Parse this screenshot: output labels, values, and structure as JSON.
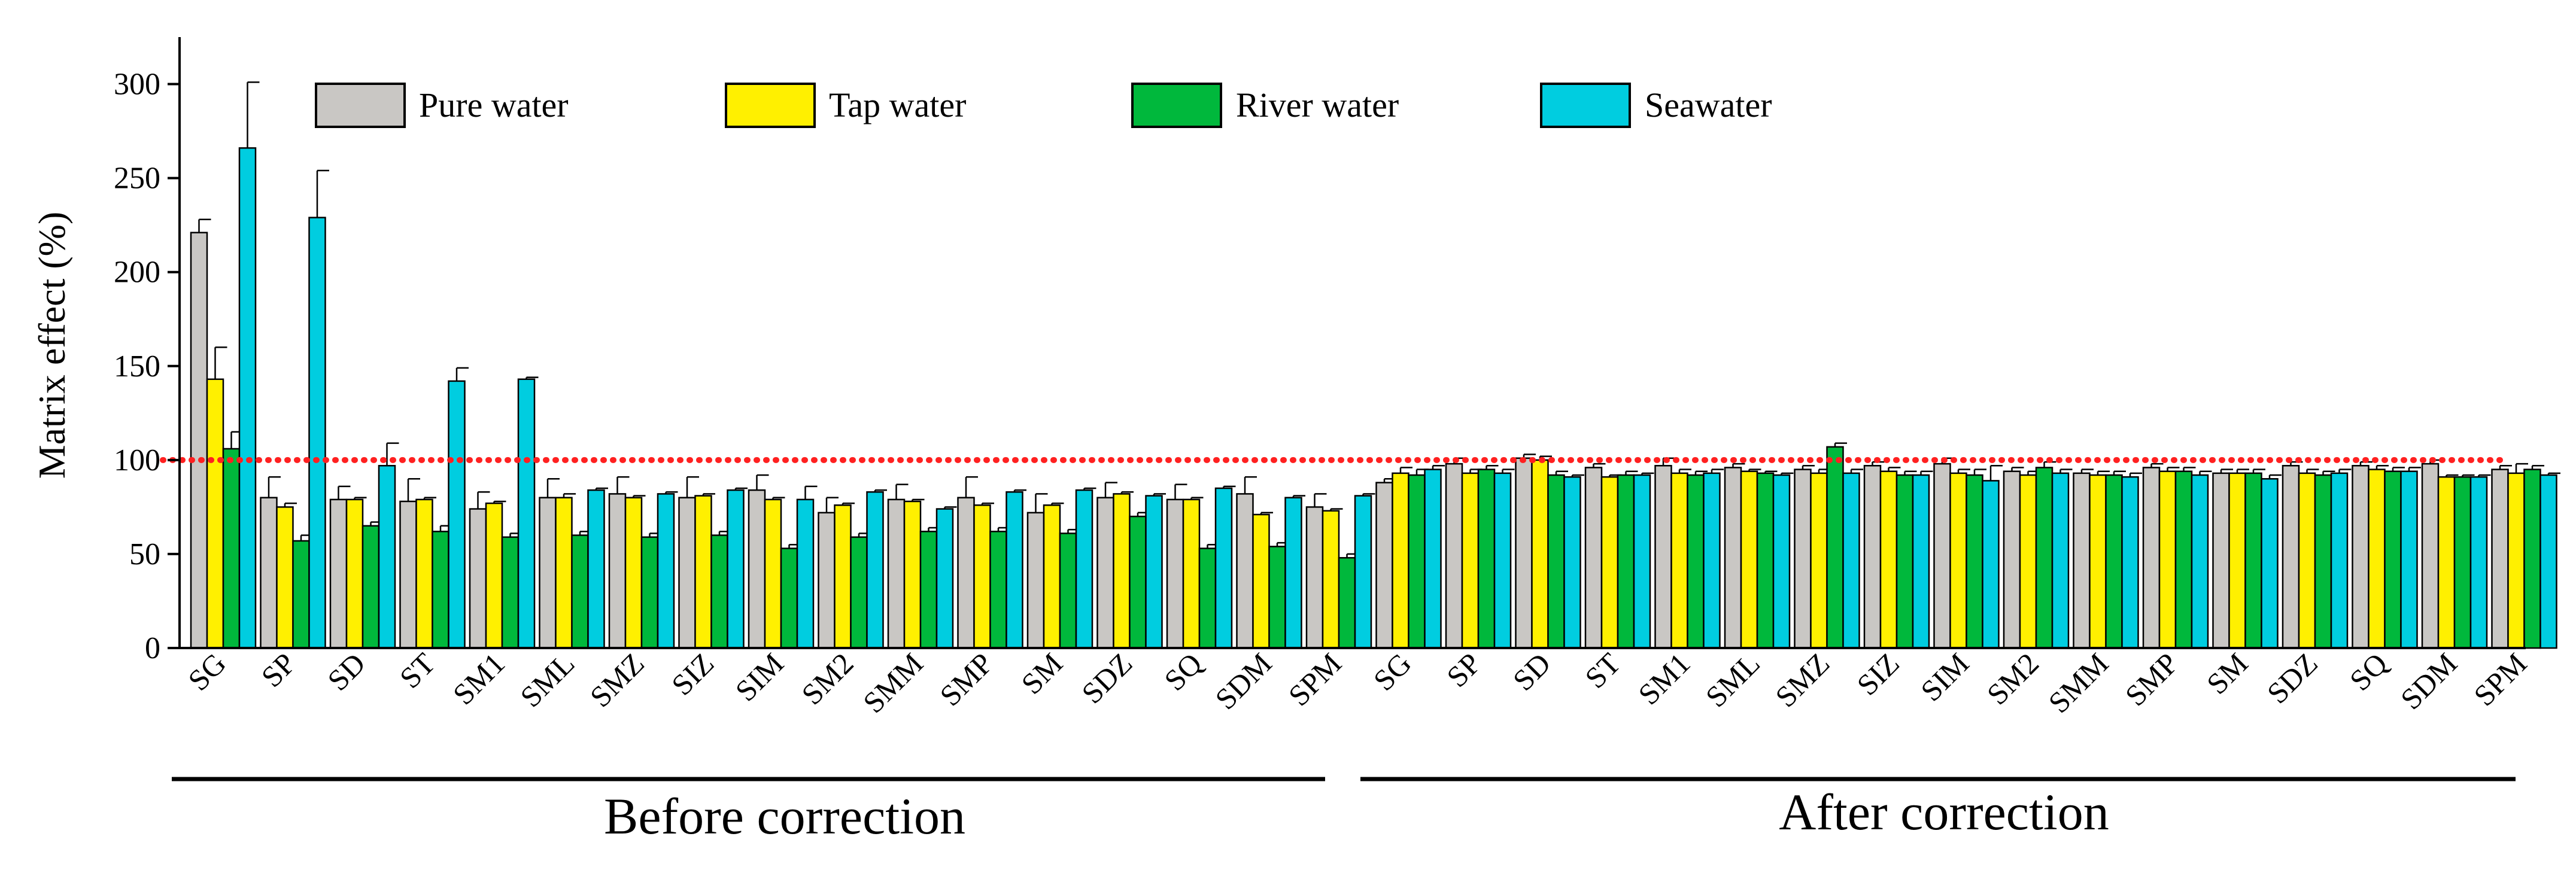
{
  "chart_data": {
    "type": "bar",
    "ylabel": "Matrix effect (%)",
    "xlabel": "",
    "ylim": [
      0,
      325
    ],
    "yticks": [
      0,
      50,
      100,
      150,
      200,
      250,
      300
    ],
    "reference_line": {
      "y": 100,
      "style": "dotted",
      "color": "#ff2020"
    },
    "legend_placement": "top-left",
    "series": [
      {
        "name": "Pure water",
        "color": "#c9c7c4"
      },
      {
        "name": "Tap water",
        "color": "#fff000"
      },
      {
        "name": "River water",
        "color": "#00b83c"
      },
      {
        "name": "Seawater",
        "color": "#00cde0"
      }
    ],
    "groups": [
      {
        "label": "Before correction",
        "categories": [
          "SG",
          "SP",
          "SD",
          "ST",
          "SM1",
          "SML",
          "SMZ",
          "SIZ",
          "SIM",
          "SM2",
          "SMM",
          "SMP",
          "SM",
          "SDZ",
          "SQ",
          "SDM",
          "SPM"
        ],
        "values": [
          [
            221,
            80,
            79,
            78,
            74,
            80,
            82,
            80,
            84,
            72,
            79,
            80,
            72,
            80,
            79,
            82,
            75
          ],
          [
            143,
            75,
            79,
            79,
            77,
            80,
            80,
            81,
            79,
            76,
            78,
            76,
            76,
            82,
            79,
            71,
            73
          ],
          [
            106,
            57,
            65,
            62,
            59,
            60,
            59,
            60,
            53,
            59,
            62,
            62,
            61,
            70,
            53,
            54,
            48
          ],
          [
            266,
            229,
            97,
            142,
            143,
            84,
            82,
            84,
            79,
            83,
            74,
            83,
            84,
            81,
            85,
            80,
            81
          ]
        ],
        "errors": [
          [
            7,
            11,
            7,
            12,
            9,
            10,
            9,
            11,
            8,
            8,
            8,
            11,
            10,
            8,
            8,
            9,
            7
          ],
          [
            17,
            2,
            1,
            1,
            1,
            2,
            1,
            1,
            1,
            1,
            1,
            1,
            1,
            1,
            1,
            1,
            1
          ],
          [
            9,
            3,
            2,
            3,
            2,
            2,
            2,
            2,
            2,
            2,
            2,
            2,
            2,
            2,
            2,
            2,
            2
          ],
          [
            35,
            25,
            12,
            7,
            1,
            1,
            1,
            1,
            7,
            1,
            1,
            1,
            1,
            1,
            1,
            1,
            1
          ]
        ]
      },
      {
        "label": "After correction",
        "categories": [
          "SG",
          "SP",
          "SD",
          "ST",
          "SM1",
          "SML",
          "SMZ",
          "SIZ",
          "SIM",
          "SM2",
          "SMM",
          "SMP",
          "SM",
          "SDZ",
          "SQ",
          "SDM",
          "SPM"
        ],
        "values": [
          [
            88,
            98,
            101,
            96,
            97,
            96,
            95,
            97,
            98,
            94,
            93,
            96,
            93,
            97,
            97,
            98,
            95
          ],
          [
            93,
            93,
            100,
            91,
            93,
            94,
            93,
            94,
            93,
            92,
            92,
            94,
            93,
            93,
            95,
            91,
            93
          ],
          [
            92,
            95,
            92,
            92,
            92,
            93,
            107,
            92,
            92,
            96,
            92,
            94,
            93,
            92,
            94,
            91,
            95
          ],
          [
            95,
            93,
            91,
            92,
            93,
            92,
            93,
            92,
            89,
            93,
            91,
            92,
            90,
            93,
            94,
            91,
            92
          ]
        ],
        "errors": [
          [
            2,
            3,
            2,
            2,
            4,
            2,
            2,
            2,
            3,
            2,
            2,
            2,
            2,
            2,
            2,
            2,
            2
          ],
          [
            3,
            2,
            2,
            1,
            2,
            1,
            2,
            2,
            2,
            2,
            2,
            2,
            2,
            2,
            2,
            1,
            5
          ],
          [
            3,
            2,
            2,
            2,
            2,
            1,
            2,
            2,
            3,
            3,
            2,
            2,
            2,
            2,
            2,
            1,
            2
          ],
          [
            2,
            2,
            1,
            1,
            2,
            1,
            2,
            2,
            8,
            2,
            2,
            2,
            2,
            2,
            2,
            1,
            1
          ]
        ]
      }
    ]
  }
}
